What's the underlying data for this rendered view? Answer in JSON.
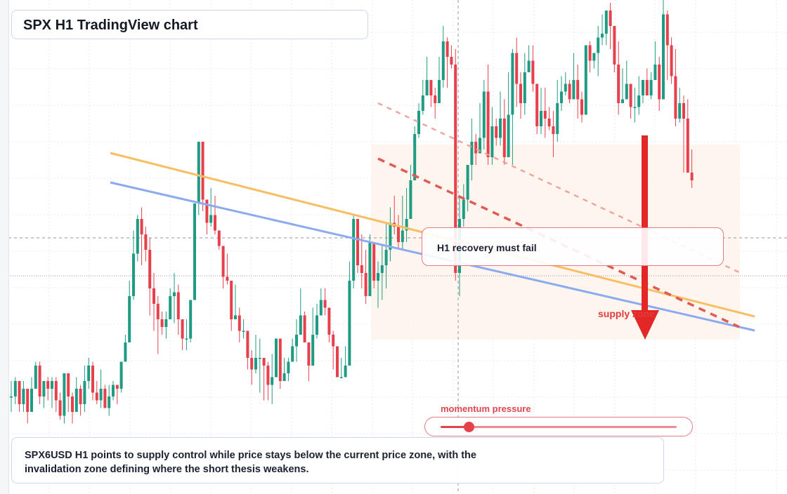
{
  "title": "SPX H1 TradingView chart",
  "chart_data": {
    "type": "candlestick",
    "symbol": "SPX6USD",
    "timeframe": "H1",
    "y_direction": "price",
    "candles": [
      [
        10,
        10,
        14,
        6
      ],
      [
        10,
        14,
        15,
        8
      ],
      [
        14,
        8,
        12,
        6
      ],
      [
        8,
        12,
        14,
        6
      ],
      [
        12,
        6,
        9,
        3
      ],
      [
        6,
        12,
        15,
        9
      ],
      [
        12,
        18,
        19,
        12
      ],
      [
        18,
        10,
        19,
        8
      ],
      [
        10,
        14,
        14,
        7
      ],
      [
        14,
        12,
        15,
        9
      ],
      [
        12,
        14,
        15,
        7
      ],
      [
        14,
        9,
        15,
        6
      ],
      [
        9,
        5,
        11,
        4
      ],
      [
        5,
        16,
        16,
        3
      ],
      [
        16,
        10,
        16,
        6
      ],
      [
        10,
        6,
        11,
        3
      ],
      [
        6,
        12,
        15,
        9
      ],
      [
        12,
        8,
        13,
        5
      ],
      [
        8,
        14,
        18,
        6
      ],
      [
        14,
        18,
        20,
        12
      ],
      [
        18,
        11,
        19,
        9
      ],
      [
        11,
        9,
        14,
        8
      ],
      [
        9,
        12,
        17,
        7
      ],
      [
        12,
        7,
        13,
        7
      ],
      [
        7,
        10,
        13,
        5
      ],
      [
        10,
        13,
        14,
        9
      ],
      [
        13,
        12,
        13,
        8
      ],
      [
        12,
        19,
        19,
        11
      ],
      [
        19,
        24,
        26,
        19
      ],
      [
        24,
        36,
        40,
        24
      ],
      [
        36,
        47,
        53,
        35
      ],
      [
        47,
        56,
        57,
        45
      ],
      [
        56,
        52,
        59,
        44
      ],
      [
        52,
        48,
        54,
        45
      ],
      [
        48,
        38,
        51,
        31
      ],
      [
        38,
        34,
        42,
        27
      ],
      [
        34,
        30,
        36,
        21
      ],
      [
        30,
        28,
        32,
        26
      ],
      [
        28,
        30,
        32,
        25
      ],
      [
        30,
        36,
        38,
        30
      ],
      [
        36,
        37,
        42,
        29
      ],
      [
        37,
        30,
        39,
        26
      ],
      [
        30,
        25,
        29,
        22
      ],
      [
        25,
        25,
        30,
        22
      ],
      [
        25,
        35,
        35,
        24
      ],
      [
        35,
        60,
        60,
        35
      ],
      [
        60,
        76,
        76,
        57
      ],
      [
        76,
        61,
        68,
        58
      ],
      [
        61,
        55,
        61,
        52
      ],
      [
        55,
        57,
        64,
        54
      ],
      [
        57,
        53,
        62,
        52
      ],
      [
        53,
        49,
        52,
        48
      ],
      [
        49,
        41,
        47,
        38
      ],
      [
        41,
        40,
        47,
        39
      ],
      [
        40,
        30,
        40,
        27
      ],
      [
        30,
        31,
        39,
        31
      ],
      [
        31,
        27,
        33,
        24
      ],
      [
        27,
        27,
        30,
        25
      ],
      [
        27,
        20,
        27,
        17
      ],
      [
        20,
        17,
        22,
        13
      ],
      [
        17,
        20,
        26,
        16
      ],
      [
        20,
        20,
        25,
        11
      ],
      [
        20,
        18,
        19,
        9
      ],
      [
        18,
        13,
        19,
        9
      ],
      [
        13,
        15,
        21,
        8
      ],
      [
        15,
        25,
        25,
        15
      ],
      [
        25,
        14,
        18,
        12
      ],
      [
        14,
        16,
        20,
        16
      ],
      [
        16,
        19,
        20,
        14
      ],
      [
        19,
        23,
        25,
        20
      ],
      [
        23,
        26,
        30,
        19
      ],
      [
        26,
        31,
        38,
        26
      ],
      [
        31,
        24,
        32,
        24
      ],
      [
        24,
        18,
        24,
        14
      ],
      [
        18,
        26,
        33,
        18
      ],
      [
        26,
        31,
        34,
        25
      ],
      [
        31,
        35,
        38,
        31
      ],
      [
        35,
        33,
        38,
        31
      ],
      [
        33,
        26,
        33,
        24
      ],
      [
        26,
        23,
        27,
        17
      ],
      [
        23,
        15,
        23,
        16
      ],
      [
        15,
        15,
        20,
        16
      ],
      [
        15,
        18,
        23,
        17
      ],
      [
        18,
        40,
        45,
        20
      ],
      [
        40,
        56,
        57,
        38
      ],
      [
        56,
        44,
        55,
        42
      ],
      [
        44,
        42,
        52,
        38
      ],
      [
        42,
        36,
        48,
        34
      ],
      [
        36,
        50,
        52,
        36
      ],
      [
        50,
        40,
        45,
        38
      ],
      [
        40,
        42,
        45,
        33
      ],
      [
        42,
        44,
        49,
        35
      ],
      [
        44,
        48,
        55,
        38
      ],
      [
        48,
        55,
        59,
        45
      ],
      [
        55,
        54,
        62,
        52
      ],
      [
        54,
        50,
        57,
        48
      ],
      [
        50,
        53,
        62,
        48
      ],
      [
        53,
        56,
        64,
        50
      ],
      [
        56,
        66,
        70,
        56
      ],
      [
        66,
        78,
        80,
        66
      ],
      [
        78,
        84,
        86,
        77
      ],
      [
        84,
        88,
        92,
        83
      ],
      [
        88,
        92,
        98,
        91
      ],
      [
        92,
        88,
        92,
        85
      ],
      [
        88,
        86,
        90,
        82
      ],
      [
        86,
        92,
        98,
        86
      ],
      [
        92,
        102,
        106,
        90
      ],
      [
        102,
        98,
        103,
        90
      ],
      [
        98,
        96,
        101,
        95
      ],
      [
        96,
        42,
        100,
        40
      ],
      [
        42,
        56,
        62,
        36
      ],
      [
        56,
        61,
        65,
        54
      ],
      [
        61,
        70,
        70,
        58
      ],
      [
        70,
        76,
        82,
        66
      ],
      [
        76,
        73,
        78,
        70
      ],
      [
        73,
        77,
        86,
        75
      ],
      [
        77,
        89,
        92,
        74
      ],
      [
        89,
        72,
        96,
        70
      ],
      [
        72,
        80,
        85,
        70
      ],
      [
        80,
        77,
        82,
        75
      ],
      [
        77,
        82,
        89,
        75
      ],
      [
        82,
        72,
        87,
        70
      ],
      [
        72,
        83,
        94,
        72
      ],
      [
        83,
        99,
        100,
        70
      ],
      [
        99,
        91,
        103,
        85
      ],
      [
        91,
        86,
        94,
        82
      ],
      [
        86,
        94,
        99,
        83
      ],
      [
        94,
        97,
        101,
        94
      ],
      [
        97,
        91,
        101,
        89
      ],
      [
        91,
        80,
        90,
        78
      ],
      [
        80,
        84,
        90,
        78
      ],
      [
        84,
        82,
        90,
        77
      ],
      [
        82,
        80,
        85,
        79
      ],
      [
        80,
        78,
        84,
        72
      ],
      [
        78,
        86,
        92,
        76
      ],
      [
        86,
        89,
        93,
        84
      ],
      [
        89,
        91,
        94,
        88
      ],
      [
        91,
        87,
        92,
        86
      ],
      [
        87,
        92,
        99,
        87
      ],
      [
        92,
        87,
        96,
        82
      ],
      [
        87,
        83,
        89,
        81
      ],
      [
        83,
        101,
        101,
        83
      ],
      [
        101,
        97,
        102,
        94
      ],
      [
        97,
        99,
        98,
        95
      ],
      [
        99,
        103,
        106,
        93
      ],
      [
        103,
        104,
        109,
        101
      ],
      [
        104,
        110,
        110,
        101
      ],
      [
        110,
        106,
        112,
        100
      ],
      [
        106,
        96,
        104,
        94
      ],
      [
        96,
        86,
        102,
        83
      ],
      [
        86,
        87,
        95,
        86
      ],
      [
        87,
        91,
        97,
        88
      ],
      [
        91,
        85,
        91,
        82
      ],
      [
        85,
        85,
        90,
        81
      ],
      [
        85,
        88,
        93,
        83
      ],
      [
        88,
        92,
        91,
        86
      ],
      [
        92,
        88,
        95,
        88
      ],
      [
        88,
        92,
        94,
        87
      ],
      [
        92,
        96,
        102,
        92
      ],
      [
        96,
        87,
        98,
        84
      ],
      [
        87,
        109,
        113,
        87
      ],
      [
        109,
        101,
        110,
        92
      ],
      [
        101,
        93,
        103,
        91
      ],
      [
        93,
        82,
        100,
        80
      ],
      [
        82,
        86,
        90,
        81
      ],
      [
        86,
        82,
        88,
        68
      ],
      [
        82,
        68,
        87,
        68
      ],
      [
        68,
        66,
        74,
        64
      ]
    ]
  },
  "annotations": {
    "callout": "H1 recovery must fail",
    "supply_label": "supply zone",
    "momentum_label": "momentum pressure",
    "momentum_value": 0.12,
    "summary_line1": "SPX6USD H1 points to supply control while price stays below the current price zone, with the",
    "summary_line2": "invalidation zone defining where the short thesis weakens."
  },
  "colors": {
    "bull": "#1e9b82",
    "bear": "#e5404c",
    "orange_line": "#f8be63",
    "blue_line": "#8caaf0",
    "dashed_red": "#e05a5a",
    "arrow": "#e32626",
    "zone": "#fef3e8"
  }
}
